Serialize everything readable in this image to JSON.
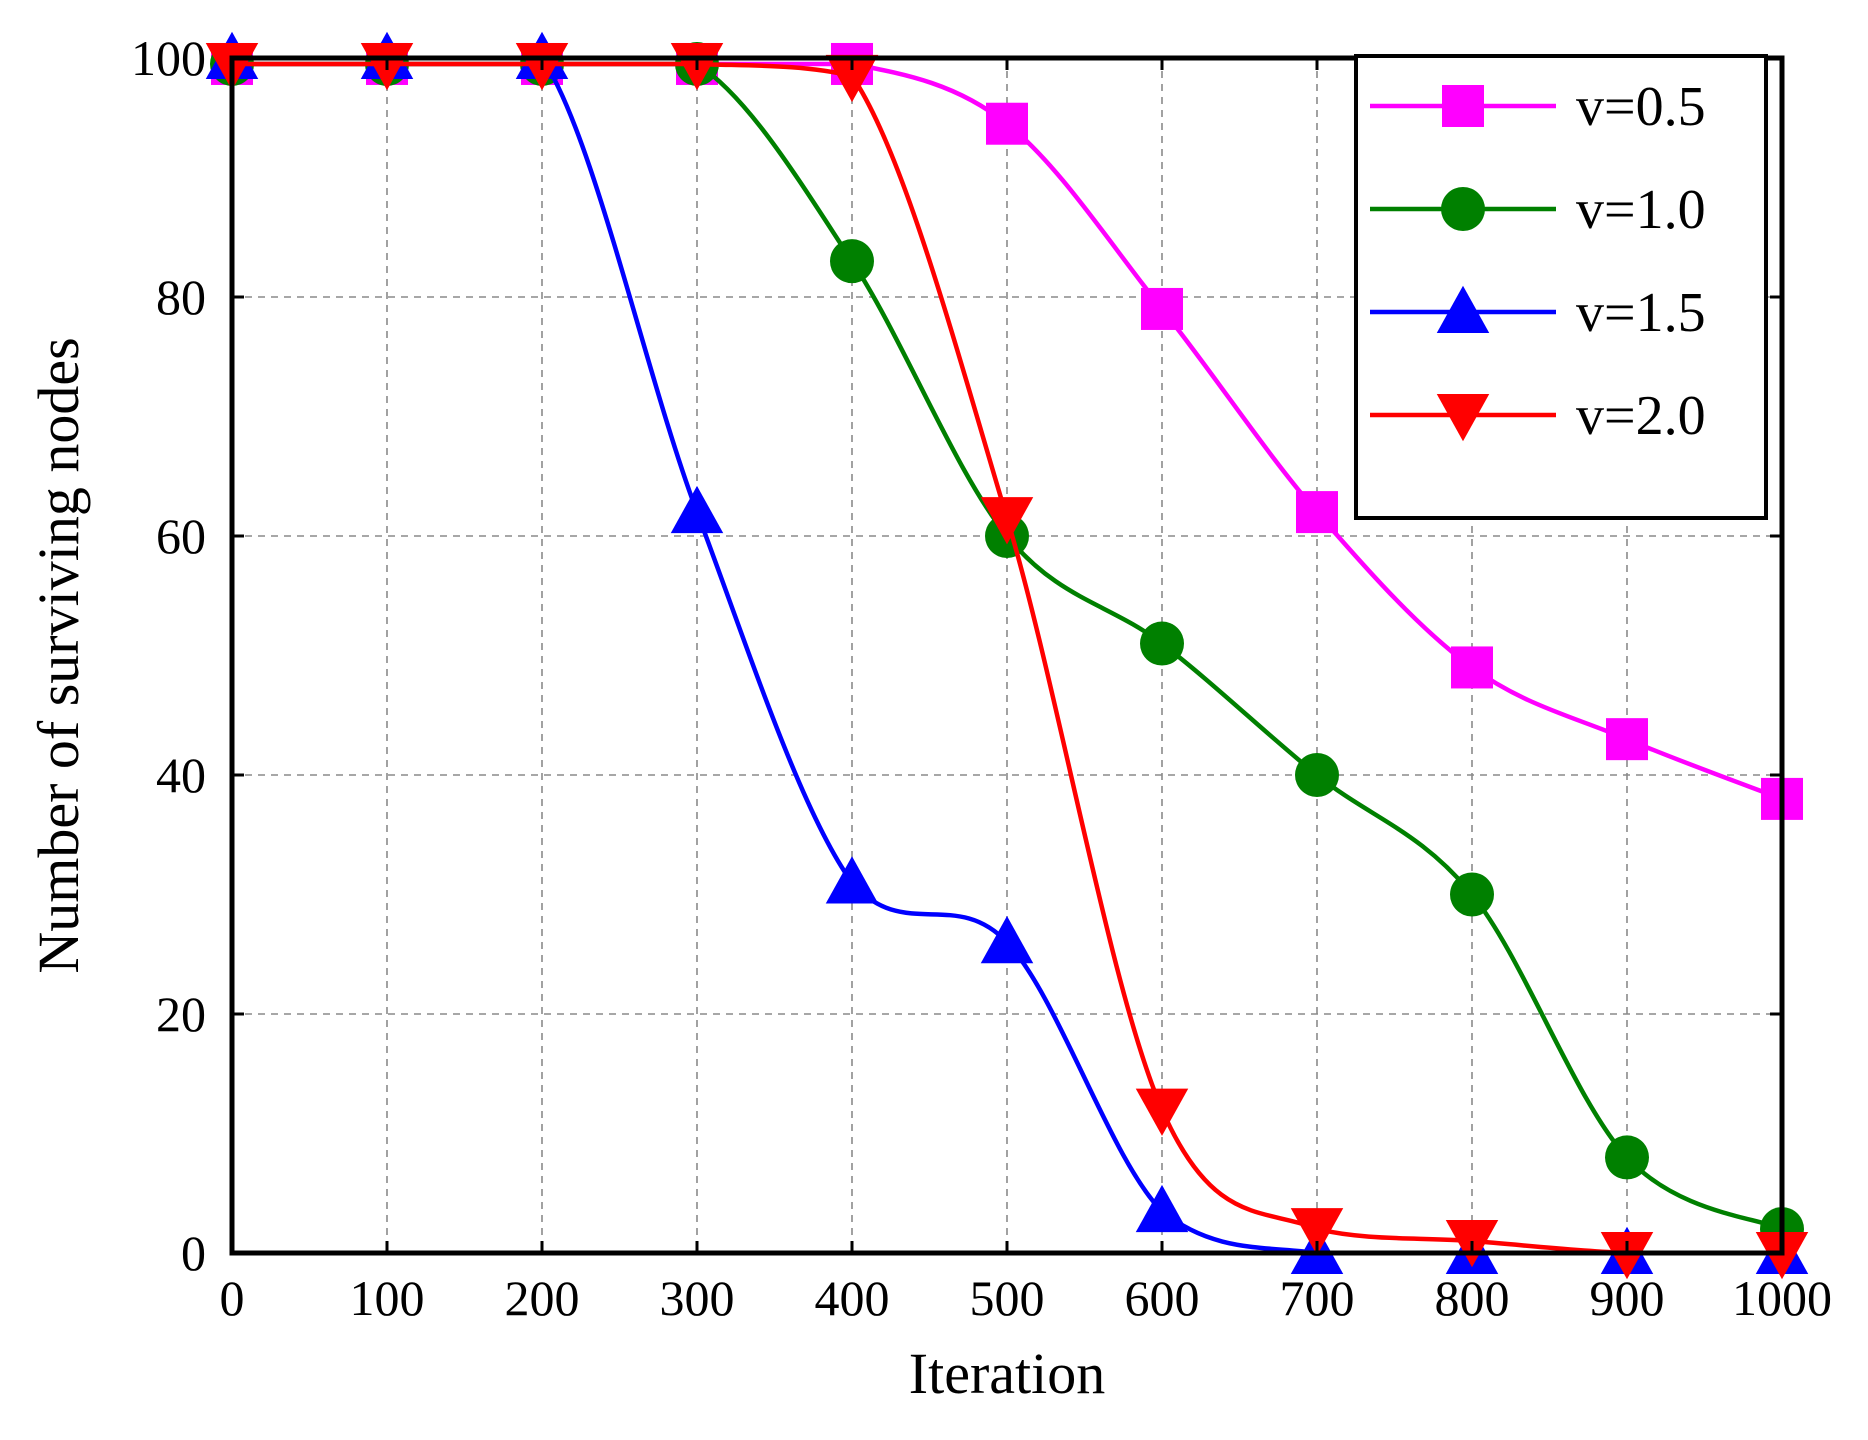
{
  "chart_data": {
    "type": "line",
    "title": "",
    "xlabel": "Iteration",
    "ylabel": "Number of surviving nodes",
    "xlim": [
      0,
      1000
    ],
    "ylim": [
      0,
      100
    ],
    "xticks": [
      "0",
      "100",
      "200",
      "300",
      "400",
      "500",
      "600",
      "700",
      "800",
      "900",
      "1000"
    ],
    "yticks": [
      "0",
      "20",
      "40",
      "60",
      "80",
      "100"
    ],
    "grid": true,
    "legend_position": "top-right",
    "x": [
      0,
      100,
      200,
      300,
      400,
      500,
      600,
      700,
      800,
      900,
      1000
    ],
    "series": [
      {
        "name": "v=0.5",
        "color": "#ff00ff",
        "marker": "square",
        "values": [
          99.5,
          99.5,
          99.5,
          99.5,
          99.5,
          94.5,
          79,
          62,
          49,
          43,
          38
        ]
      },
      {
        "name": "v=1.0",
        "color": "#008000",
        "marker": "circle",
        "values": [
          99.5,
          99.5,
          99.5,
          99.5,
          83,
          60,
          51,
          40,
          30,
          8,
          2
        ]
      },
      {
        "name": "v=1.5",
        "color": "#0000ff",
        "marker": "triangle-up",
        "values": [
          100,
          100,
          100,
          62,
          31,
          26,
          3.5,
          0,
          0,
          0,
          0
        ]
      },
      {
        "name": "v=2.0",
        "color": "#ff0000",
        "marker": "triangle-down",
        "values": [
          99.5,
          99.5,
          99.5,
          99.5,
          98.5,
          61.5,
          12,
          2,
          1,
          0,
          0
        ]
      }
    ]
  }
}
